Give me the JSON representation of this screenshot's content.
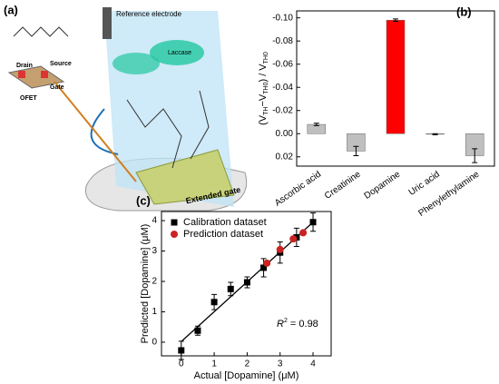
{
  "panel_labels": [
    "(a)",
    "(b)",
    "(c)"
  ],
  "diagram": {
    "reference_electrode": "Reference electrode",
    "drain": "Drain",
    "source": "Source",
    "gate": "Gate",
    "ofet": "OFET",
    "extended_gate": "Extended gate",
    "laccase": "Laccase"
  },
  "chart_data": [
    {
      "type": "bar",
      "ylabel_parts": [
        "(V",
        "TH",
        "−V",
        "TH0",
        ") / V",
        "TH0"
      ],
      "categories": [
        "Ascorbic acid",
        "Creatinine",
        "Dopamine",
        "Uric acid",
        "Phenylethylamine"
      ],
      "values": [
        -0.008,
        0.015,
        -0.098,
        0.0005,
        0.019
      ],
      "errors": [
        0.001,
        0.004,
        0.001,
        0.0005,
        0.006
      ],
      "colors": [
        "#bfbfbf",
        "#bfbfbf",
        "#ff0000",
        "#bfbfbf",
        "#bfbfbf"
      ],
      "ylim": [
        0.028,
        -0.106
      ],
      "yticks": [
        {
          "value": -0.1,
          "label": "-0.10"
        },
        {
          "value": -0.08,
          "label": "-0.08"
        },
        {
          "value": -0.06,
          "label": "-0.06"
        },
        {
          "value": -0.04,
          "label": "-0.04"
        },
        {
          "value": -0.02,
          "label": "-0.02"
        },
        {
          "value": 0,
          "label": "0.00"
        },
        {
          "value": 0.02,
          "label": "0.02"
        }
      ]
    },
    {
      "type": "scatter",
      "xlabel": "Actual [Dopamine] (μM)",
      "ylabel": "Predicted [Dopamine] (μM)",
      "annotation_parts": [
        "R",
        "2",
        " = 0.98"
      ],
      "legend": "top-left",
      "series": [
        {
          "name": "Calibration dataset",
          "color": "#000000",
          "marker": "square",
          "x": [
            0,
            0.5,
            1,
            1.5,
            2,
            2.5,
            3,
            3.5,
            4
          ],
          "values": [
            -0.27,
            0.38,
            1.32,
            1.75,
            1.97,
            2.45,
            2.95,
            3.45,
            3.95
          ],
          "errors": [
            0.3,
            0.15,
            0.25,
            0.22,
            0.18,
            0.3,
            0.35,
            0.3,
            0.3
          ]
        },
        {
          "name": "Prediction dataset",
          "color": "#cc2222",
          "marker": "circle",
          "x": [
            2.6,
            3,
            3.4,
            3.7
          ],
          "values": [
            2.6,
            3.05,
            3.4,
            3.6
          ]
        }
      ],
      "fit_line": {
        "x": [
          0,
          4
        ],
        "values": [
          0.02,
          3.95
        ],
        "color": "#000000"
      },
      "xlim": [
        -0.6,
        4.55
      ],
      "ylim": [
        -0.45,
        4.3
      ],
      "xticks": [
        0,
        1,
        2,
        3,
        4
      ],
      "yticks": [
        0,
        1,
        2,
        3,
        4
      ]
    }
  ]
}
